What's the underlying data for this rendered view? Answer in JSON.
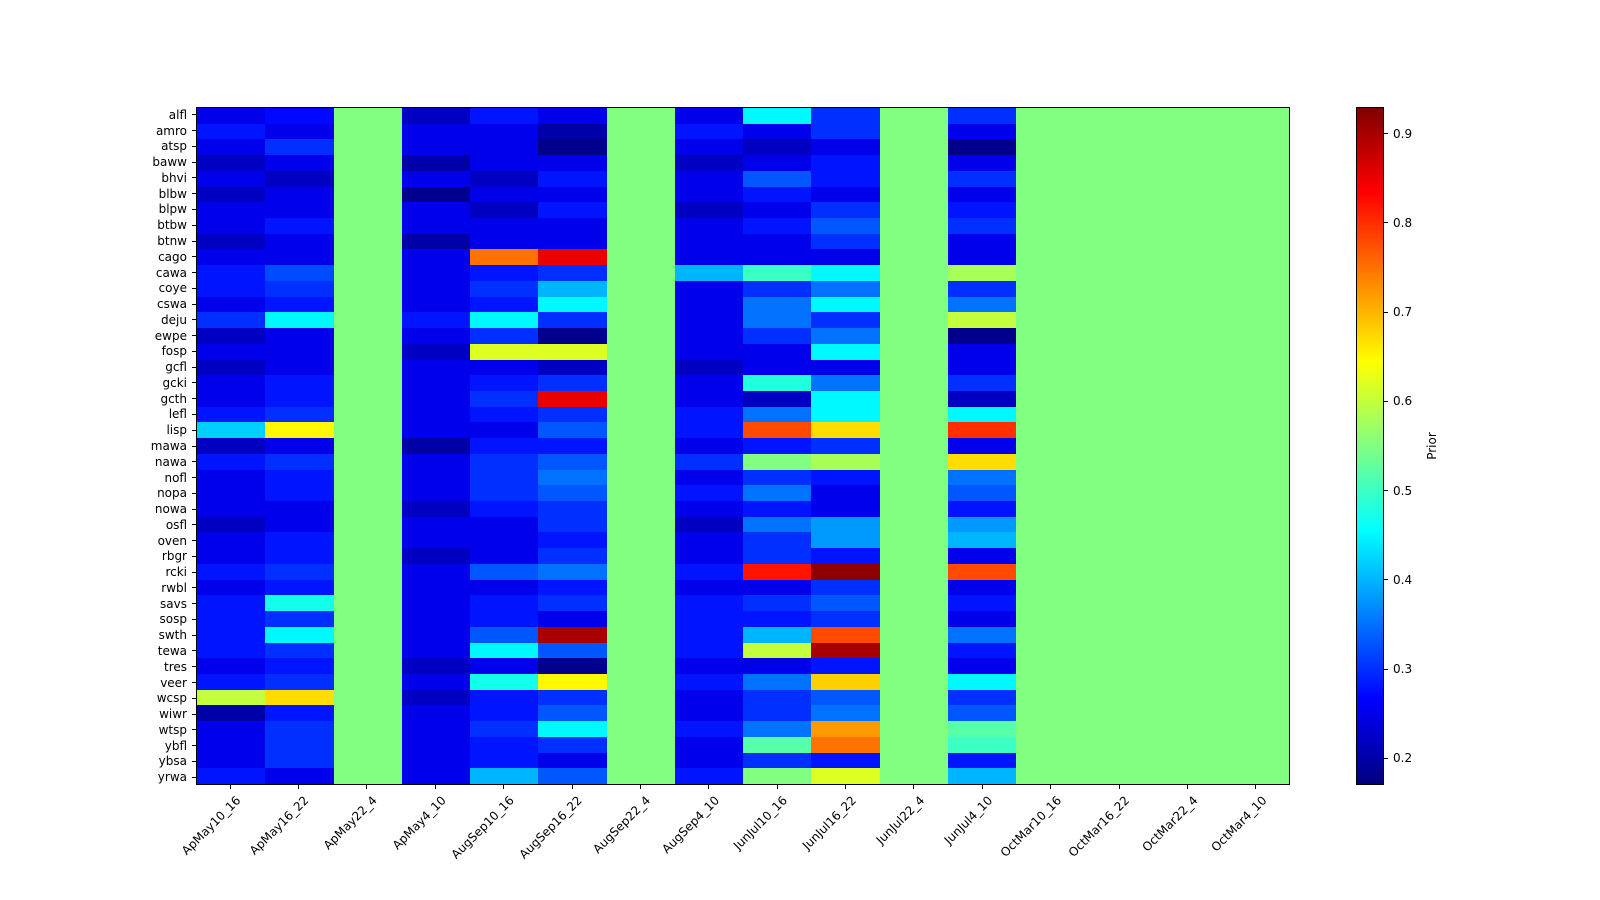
{
  "figure": {
    "background": "#ffffff"
  },
  "chart_data": {
    "type": "heatmap",
    "colormap": "jet",
    "vmin": 0.17,
    "vmax": 0.93,
    "grid": "off",
    "columns": [
      "ApMay10_16",
      "ApMay16_22",
      "ApMay22_4",
      "ApMay4_10",
      "AugSep10_16",
      "AugSep16_22",
      "AugSep22_4",
      "AugSep4_10",
      "JunJul10_16",
      "JunJul16_22",
      "JunJul22_4",
      "JunJul4_10",
      "OctMar10_16",
      "OctMar16_22",
      "OctMar22_4",
      "OctMar4_10"
    ],
    "rows": [
      "alfl",
      "amro",
      "atsp",
      "baww",
      "bhvi",
      "blbw",
      "blpw",
      "btbw",
      "btnw",
      "cago",
      "cawa",
      "coye",
      "cswa",
      "deju",
      "ewpe",
      "fosp",
      "gcfl",
      "gcki",
      "gcth",
      "lefl",
      "lisp",
      "mawa",
      "nawa",
      "nofl",
      "nopa",
      "nowa",
      "osfl",
      "oven",
      "rbgr",
      "rcki",
      "rwbl",
      "savs",
      "sosp",
      "swth",
      "tewa",
      "tres",
      "veer",
      "wcsp",
      "wiwr",
      "wtsp",
      "ybfl",
      "ybsa",
      "yrwa"
    ],
    "values": [
      [
        0.25,
        0.27,
        0.55,
        0.22,
        0.28,
        0.25,
        0.55,
        0.25,
        0.45,
        0.3,
        0.55,
        0.3,
        0.55,
        0.55,
        0.55,
        0.55
      ],
      [
        0.28,
        0.25,
        0.55,
        0.25,
        0.25,
        0.2,
        0.55,
        0.28,
        0.25,
        0.3,
        0.55,
        0.25,
        0.55,
        0.55,
        0.55,
        0.55
      ],
      [
        0.25,
        0.3,
        0.55,
        0.25,
        0.25,
        0.18,
        0.55,
        0.25,
        0.22,
        0.25,
        0.55,
        0.18,
        0.55,
        0.55,
        0.55,
        0.55
      ],
      [
        0.22,
        0.25,
        0.55,
        0.2,
        0.25,
        0.25,
        0.55,
        0.22,
        0.25,
        0.28,
        0.55,
        0.25,
        0.55,
        0.55,
        0.55,
        0.55
      ],
      [
        0.25,
        0.22,
        0.55,
        0.25,
        0.22,
        0.28,
        0.55,
        0.25,
        0.33,
        0.28,
        0.55,
        0.3,
        0.55,
        0.55,
        0.55,
        0.55
      ],
      [
        0.22,
        0.25,
        0.55,
        0.18,
        0.25,
        0.25,
        0.55,
        0.25,
        0.28,
        0.25,
        0.55,
        0.25,
        0.55,
        0.55,
        0.55,
        0.55
      ],
      [
        0.25,
        0.25,
        0.55,
        0.25,
        0.22,
        0.28,
        0.55,
        0.22,
        0.25,
        0.3,
        0.55,
        0.28,
        0.55,
        0.55,
        0.55,
        0.55
      ],
      [
        0.25,
        0.28,
        0.55,
        0.25,
        0.25,
        0.25,
        0.55,
        0.25,
        0.28,
        0.33,
        0.55,
        0.3,
        0.55,
        0.55,
        0.55,
        0.55
      ],
      [
        0.22,
        0.25,
        0.55,
        0.2,
        0.25,
        0.25,
        0.55,
        0.25,
        0.25,
        0.3,
        0.55,
        0.25,
        0.55,
        0.55,
        0.55,
        0.55
      ],
      [
        0.25,
        0.25,
        0.55,
        0.25,
        0.75,
        0.85,
        0.55,
        0.25,
        0.25,
        0.25,
        0.55,
        0.25,
        0.55,
        0.55,
        0.55,
        0.55
      ],
      [
        0.28,
        0.32,
        0.55,
        0.25,
        0.28,
        0.3,
        0.55,
        0.4,
        0.5,
        0.45,
        0.55,
        0.58,
        0.55,
        0.55,
        0.55,
        0.55
      ],
      [
        0.28,
        0.3,
        0.55,
        0.25,
        0.3,
        0.4,
        0.55,
        0.25,
        0.3,
        0.35,
        0.55,
        0.3,
        0.55,
        0.55,
        0.55,
        0.55
      ],
      [
        0.25,
        0.28,
        0.55,
        0.25,
        0.28,
        0.45,
        0.55,
        0.25,
        0.35,
        0.45,
        0.55,
        0.35,
        0.55,
        0.55,
        0.55,
        0.55
      ],
      [
        0.3,
        0.45,
        0.55,
        0.28,
        0.45,
        0.3,
        0.55,
        0.25,
        0.35,
        0.3,
        0.55,
        0.6,
        0.55,
        0.55,
        0.55,
        0.55
      ],
      [
        0.22,
        0.25,
        0.55,
        0.25,
        0.3,
        0.18,
        0.55,
        0.25,
        0.3,
        0.35,
        0.55,
        0.18,
        0.55,
        0.55,
        0.55,
        0.55
      ],
      [
        0.25,
        0.25,
        0.55,
        0.22,
        0.62,
        0.62,
        0.55,
        0.25,
        0.25,
        0.45,
        0.55,
        0.25,
        0.55,
        0.55,
        0.55,
        0.55
      ],
      [
        0.22,
        0.25,
        0.55,
        0.25,
        0.25,
        0.22,
        0.55,
        0.22,
        0.25,
        0.25,
        0.55,
        0.25,
        0.55,
        0.55,
        0.55,
        0.55
      ],
      [
        0.25,
        0.28,
        0.55,
        0.25,
        0.28,
        0.3,
        0.55,
        0.25,
        0.48,
        0.35,
        0.55,
        0.3,
        0.55,
        0.55,
        0.55,
        0.55
      ],
      [
        0.25,
        0.28,
        0.55,
        0.25,
        0.3,
        0.85,
        0.55,
        0.25,
        0.22,
        0.45,
        0.55,
        0.22,
        0.55,
        0.55,
        0.55,
        0.55
      ],
      [
        0.28,
        0.3,
        0.55,
        0.25,
        0.28,
        0.3,
        0.55,
        0.28,
        0.35,
        0.45,
        0.55,
        0.45,
        0.55,
        0.55,
        0.55,
        0.55
      ],
      [
        0.42,
        0.65,
        0.55,
        0.25,
        0.25,
        0.33,
        0.55,
        0.28,
        0.78,
        0.67,
        0.55,
        0.8,
        0.55,
        0.55,
        0.55,
        0.55
      ],
      [
        0.22,
        0.25,
        0.55,
        0.2,
        0.28,
        0.28,
        0.55,
        0.25,
        0.28,
        0.3,
        0.55,
        0.25,
        0.55,
        0.55,
        0.55,
        0.55
      ],
      [
        0.28,
        0.3,
        0.55,
        0.25,
        0.3,
        0.33,
        0.55,
        0.3,
        0.55,
        0.58,
        0.55,
        0.67,
        0.55,
        0.55,
        0.55,
        0.55
      ],
      [
        0.25,
        0.28,
        0.55,
        0.25,
        0.3,
        0.35,
        0.55,
        0.25,
        0.3,
        0.28,
        0.55,
        0.35,
        0.55,
        0.55,
        0.55,
        0.55
      ],
      [
        0.25,
        0.28,
        0.55,
        0.25,
        0.3,
        0.33,
        0.55,
        0.28,
        0.35,
        0.25,
        0.55,
        0.33,
        0.55,
        0.55,
        0.55,
        0.55
      ],
      [
        0.25,
        0.25,
        0.55,
        0.22,
        0.28,
        0.3,
        0.55,
        0.25,
        0.28,
        0.25,
        0.55,
        0.28,
        0.55,
        0.55,
        0.55,
        0.55
      ],
      [
        0.22,
        0.25,
        0.55,
        0.25,
        0.25,
        0.3,
        0.55,
        0.22,
        0.35,
        0.38,
        0.55,
        0.38,
        0.55,
        0.55,
        0.55,
        0.55
      ],
      [
        0.25,
        0.28,
        0.55,
        0.25,
        0.25,
        0.28,
        0.55,
        0.25,
        0.3,
        0.38,
        0.55,
        0.4,
        0.55,
        0.55,
        0.55,
        0.55
      ],
      [
        0.25,
        0.28,
        0.55,
        0.22,
        0.25,
        0.3,
        0.55,
        0.25,
        0.3,
        0.28,
        0.55,
        0.25,
        0.55,
        0.55,
        0.55,
        0.55
      ],
      [
        0.28,
        0.3,
        0.55,
        0.25,
        0.33,
        0.35,
        0.55,
        0.28,
        0.82,
        0.92,
        0.55,
        0.78,
        0.55,
        0.55,
        0.55,
        0.55
      ],
      [
        0.25,
        0.28,
        0.55,
        0.25,
        0.25,
        0.28,
        0.55,
        0.25,
        0.25,
        0.3,
        0.55,
        0.25,
        0.55,
        0.55,
        0.55,
        0.55
      ],
      [
        0.28,
        0.47,
        0.55,
        0.25,
        0.28,
        0.3,
        0.55,
        0.28,
        0.3,
        0.33,
        0.55,
        0.28,
        0.55,
        0.55,
        0.55,
        0.55
      ],
      [
        0.28,
        0.3,
        0.55,
        0.25,
        0.28,
        0.25,
        0.55,
        0.28,
        0.28,
        0.3,
        0.55,
        0.25,
        0.55,
        0.55,
        0.55,
        0.55
      ],
      [
        0.28,
        0.45,
        0.55,
        0.25,
        0.33,
        0.9,
        0.55,
        0.28,
        0.4,
        0.78,
        0.55,
        0.35,
        0.55,
        0.55,
        0.55,
        0.55
      ],
      [
        0.28,
        0.3,
        0.55,
        0.25,
        0.45,
        0.33,
        0.55,
        0.28,
        0.6,
        0.9,
        0.55,
        0.28,
        0.55,
        0.55,
        0.55,
        0.55
      ],
      [
        0.25,
        0.28,
        0.55,
        0.22,
        0.25,
        0.18,
        0.55,
        0.25,
        0.25,
        0.28,
        0.55,
        0.25,
        0.55,
        0.55,
        0.55,
        0.55
      ],
      [
        0.28,
        0.3,
        0.55,
        0.25,
        0.47,
        0.65,
        0.55,
        0.28,
        0.35,
        0.68,
        0.55,
        0.45,
        0.55,
        0.55,
        0.55,
        0.55
      ],
      [
        0.6,
        0.67,
        0.55,
        0.22,
        0.28,
        0.3,
        0.55,
        0.25,
        0.3,
        0.33,
        0.55,
        0.3,
        0.55,
        0.55,
        0.55,
        0.55
      ],
      [
        0.2,
        0.28,
        0.55,
        0.25,
        0.28,
        0.33,
        0.55,
        0.25,
        0.3,
        0.35,
        0.55,
        0.33,
        0.55,
        0.55,
        0.55,
        0.55
      ],
      [
        0.25,
        0.3,
        0.55,
        0.25,
        0.3,
        0.45,
        0.55,
        0.28,
        0.35,
        0.72,
        0.55,
        0.52,
        0.55,
        0.55,
        0.55,
        0.55
      ],
      [
        0.25,
        0.3,
        0.55,
        0.25,
        0.28,
        0.3,
        0.55,
        0.25,
        0.52,
        0.75,
        0.55,
        0.5,
        0.55,
        0.55,
        0.55,
        0.55
      ],
      [
        0.25,
        0.3,
        0.55,
        0.25,
        0.28,
        0.25,
        0.55,
        0.25,
        0.3,
        0.28,
        0.55,
        0.28,
        0.55,
        0.55,
        0.55,
        0.55
      ],
      [
        0.28,
        0.25,
        0.55,
        0.25,
        0.4,
        0.33,
        0.55,
        0.28,
        0.55,
        0.62,
        0.55,
        0.4,
        0.55,
        0.55,
        0.55,
        0.55
      ]
    ],
    "colorbar": {
      "label": "Prior",
      "ticks": [
        0.2,
        0.3,
        0.4,
        0.5,
        0.6,
        0.7,
        0.8,
        0.9
      ],
      "position": "right"
    }
  }
}
